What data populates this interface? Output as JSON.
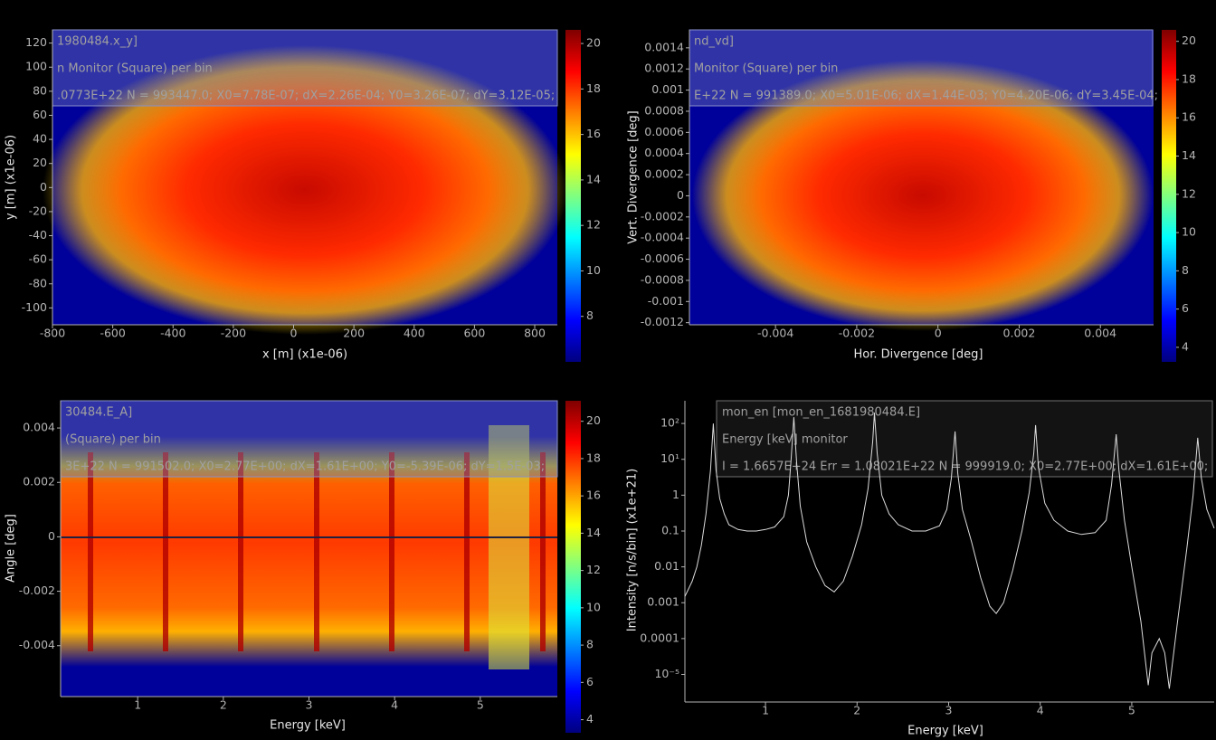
{
  "chart_data": [
    {
      "type": "heatmap",
      "annotations": [
        "1980484.x_y]",
        "n Monitor (Square) per bin",
        ".0773E+22 N = 993447.0; X0=7.78E-07; dX=2.26E-04; Y0=3.26E-07; dY=3.12E-05;"
      ],
      "xlabel": "x [m] (x1e-06)",
      "ylabel": "y [m] (x1e-06)",
      "xlim": [
        -800,
        875
      ],
      "xticks": [
        -800,
        -600,
        -400,
        -200,
        0,
        200,
        400,
        600,
        800
      ],
      "ylim": [
        -114,
        131
      ],
      "yticks": [
        -100,
        -80,
        -60,
        -40,
        -20,
        0,
        20,
        40,
        60,
        80,
        100,
        120
      ],
      "clim": [
        6.0,
        20.6
      ],
      "cticks": [
        8,
        10,
        12,
        14,
        16,
        18,
        20
      ],
      "colormap": [
        "#00007f",
        "#0000ff",
        "#0080ff",
        "#00ffff",
        "#80ff80",
        "#ffff00",
        "#ff8000",
        "#ff0000",
        "#7f0000"
      ]
    },
    {
      "type": "heatmap",
      "annotations": [
        "nd_vd]",
        "Monitor (Square) per bin",
        "E+22 N = 991389.0; X0=5.01E-06; dX=1.44E-03; Y0=4.20E-06; dY=3.45E-04;"
      ],
      "xlabel": "Hor. Divergence [deg]",
      "ylabel": "Vert. Divergence [deg]",
      "xlim": [
        -0.00612,
        0.00531
      ],
      "xticks": [
        -0.004,
        -0.002,
        0,
        0.002,
        0.004
      ],
      "ylim": [
        -0.00122,
        0.00157
      ],
      "yticks": [
        -0.0012,
        -0.001,
        -0.0008,
        -0.0006,
        -0.0004,
        -0.0002,
        0,
        0.0002,
        0.0004,
        0.0006,
        0.0008,
        0.001,
        0.0012,
        0.0014
      ],
      "clim": [
        3.24,
        20.6
      ],
      "cticks": [
        4,
        6,
        8,
        10,
        12,
        14,
        16,
        18,
        20
      ],
      "colormap": [
        "#00007f",
        "#0000ff",
        "#0080ff",
        "#00ffff",
        "#80ff80",
        "#ffff00",
        "#ff8000",
        "#ff0000",
        "#7f0000"
      ]
    },
    {
      "type": "heatmap",
      "annotations": [
        "30484.E_A]",
        "(Square) per bin",
        "3E+22 N = 991502.0; X0=2.77E+00; dX=1.61E+00; Y0=-5.39E-06; dY=1.5E-03;"
      ],
      "xlabel": "Energy [keV]",
      "ylabel": "Angle [deg]",
      "xlim": [
        0.1,
        5.9
      ],
      "xticks": [
        1,
        2,
        3,
        4,
        5
      ],
      "ylim": [
        -0.00587,
        0.005
      ],
      "yticks": [
        -0.004,
        -0.002,
        0,
        0.002,
        0.004
      ],
      "clim": [
        3.3,
        21.1
      ],
      "cticks": [
        4,
        6,
        8,
        10,
        12,
        14,
        16,
        18,
        20
      ],
      "colormap": [
        "#00007f",
        "#0000ff",
        "#0080ff",
        "#00ffff",
        "#80ff80",
        "#ffff00",
        "#ff8000",
        "#ff0000",
        "#7f0000"
      ]
    },
    {
      "type": "line",
      "annotations": [
        "mon_en [mon_en_1681980484.E]",
        "Energy [keV] monitor",
        "I = 1.6657E+24 Err = 1.08021E+22 N = 999919.0; X0=2.77E+00; dX=1.61E+00;"
      ],
      "xlabel": "Energy [keV]",
      "ylabel": "Intensity [n/s/bin] (x1e+21)",
      "log_y": true,
      "color": "#dcdcdc",
      "xlim": [
        0.12,
        5.9
      ],
      "xticks": [
        1,
        2,
        3,
        4,
        5
      ],
      "ylim": [
        1.7e-06,
        430
      ],
      "yticks": [
        {
          "value": 100,
          "label": "10²"
        },
        {
          "value": 10,
          "label": "10¹"
        },
        1,
        0.1,
        0.01,
        0.001,
        0.0001,
        {
          "value": 1e-05,
          "label": "10⁻⁵"
        }
      ],
      "x": [
        0.12,
        0.2,
        0.25,
        0.3,
        0.35,
        0.4,
        0.43,
        0.46,
        0.5,
        0.55,
        0.6,
        0.7,
        0.8,
        0.9,
        1.0,
        1.1,
        1.2,
        1.25,
        1.28,
        1.31,
        1.34,
        1.38,
        1.45,
        1.55,
        1.65,
        1.75,
        1.85,
        1.95,
        2.05,
        2.12,
        2.17,
        2.19,
        2.22,
        2.27,
        2.35,
        2.45,
        2.6,
        2.75,
        2.9,
        2.98,
        3.03,
        3.07,
        3.1,
        3.15,
        3.25,
        3.35,
        3.45,
        3.52,
        3.6,
        3.7,
        3.8,
        3.88,
        3.93,
        3.95,
        3.98,
        4.05,
        4.15,
        4.3,
        4.45,
        4.6,
        4.72,
        4.78,
        4.83,
        4.86,
        4.92,
        5.0,
        5.1,
        5.18,
        5.22,
        5.3,
        5.36,
        5.41,
        5.5,
        5.6,
        5.67,
        5.72,
        5.76,
        5.82,
        5.9
      ],
      "values": [
        0.0015,
        0.004,
        0.01,
        0.04,
        0.3,
        5,
        100,
        5,
        0.8,
        0.3,
        0.15,
        0.11,
        0.1,
        0.1,
        0.11,
        0.13,
        0.25,
        1,
        10,
        150,
        8,
        0.5,
        0.05,
        0.01,
        0.003,
        0.002,
        0.004,
        0.02,
        0.15,
        1.5,
        30,
        200,
        15,
        1,
        0.3,
        0.15,
        0.1,
        0.1,
        0.14,
        0.4,
        3,
        60,
        4,
        0.4,
        0.05,
        0.005,
        0.0008,
        0.0005,
        0.001,
        0.008,
        0.1,
        1.2,
        15,
        90,
        6,
        0.6,
        0.2,
        0.1,
        0.08,
        0.09,
        0.2,
        2,
        50,
        5,
        0.2,
        0.01,
        0.0003,
        5e-06,
        4e-05,
        0.0001,
        4e-05,
        4e-06,
        0.0003,
        0.03,
        1,
        40,
        3,
        0.4,
        0.12
      ]
    }
  ]
}
